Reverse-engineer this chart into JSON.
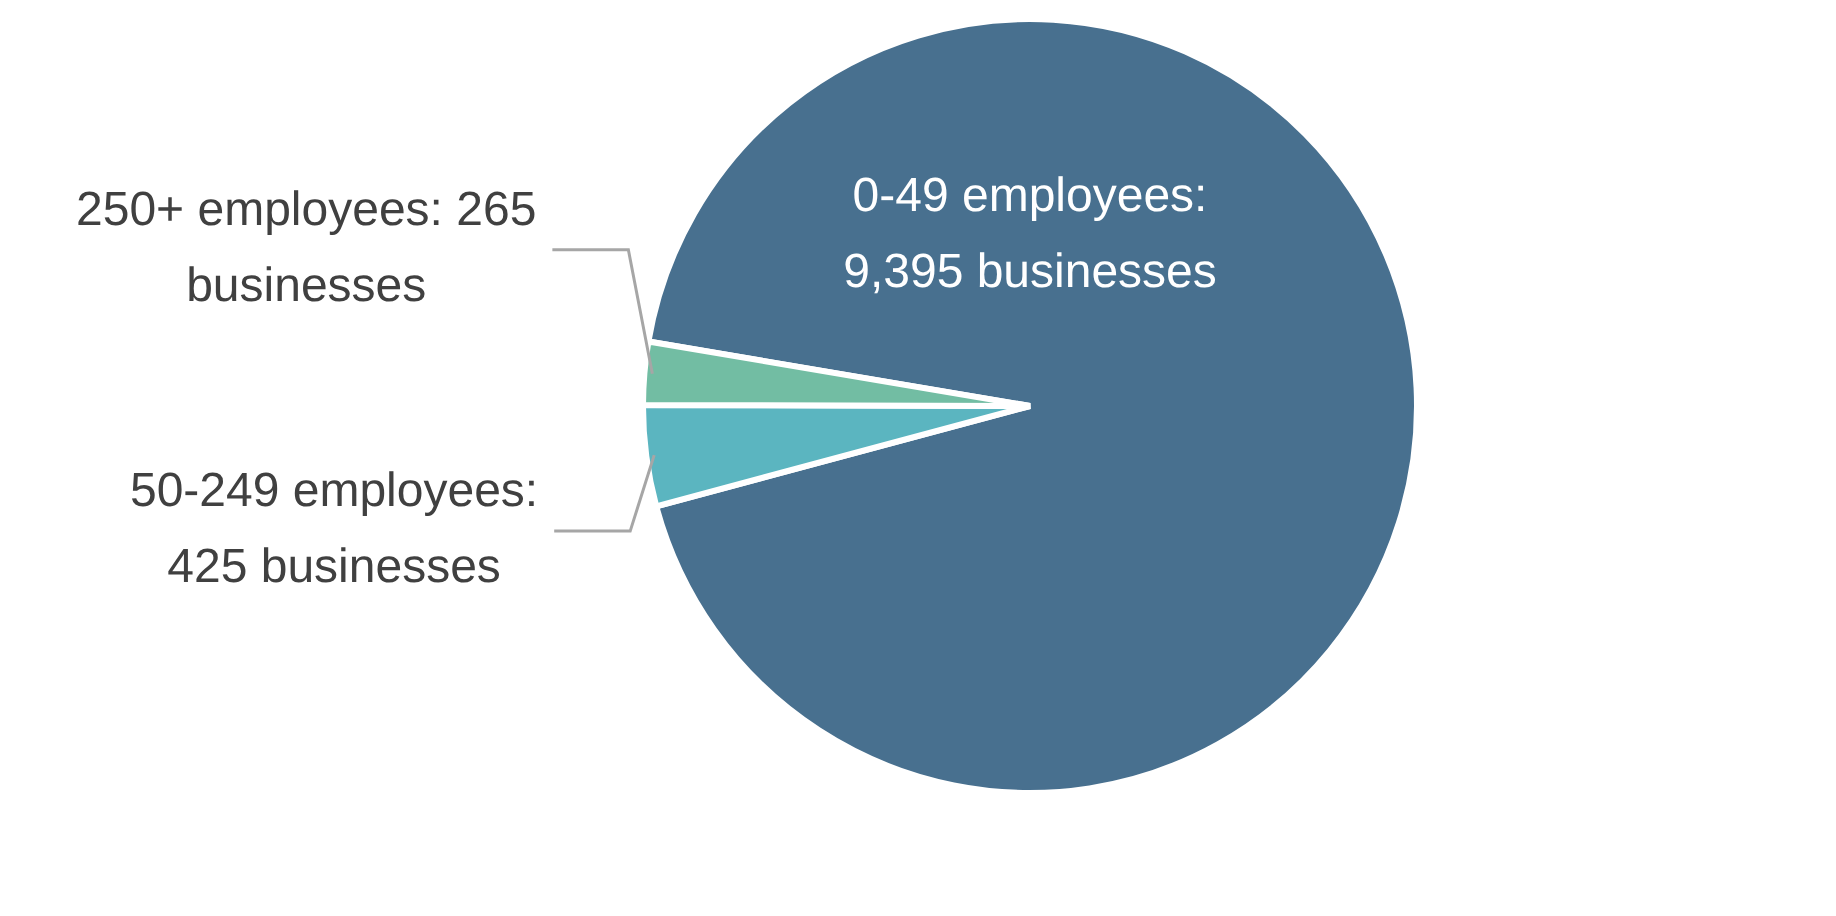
{
  "chart_data": {
    "type": "pie",
    "categories": [
      "0-49 employees",
      "50-249 employees",
      "250+ employees"
    ],
    "values": [
      9395,
      425,
      265
    ],
    "value_labels": [
      ": 9,395 businesses",
      ": 425 businesses",
      ": 265 businesses"
    ],
    "colors": [
      "#48708f",
      "#5bb5c0",
      "#72bda3"
    ],
    "legend": false
  }
}
